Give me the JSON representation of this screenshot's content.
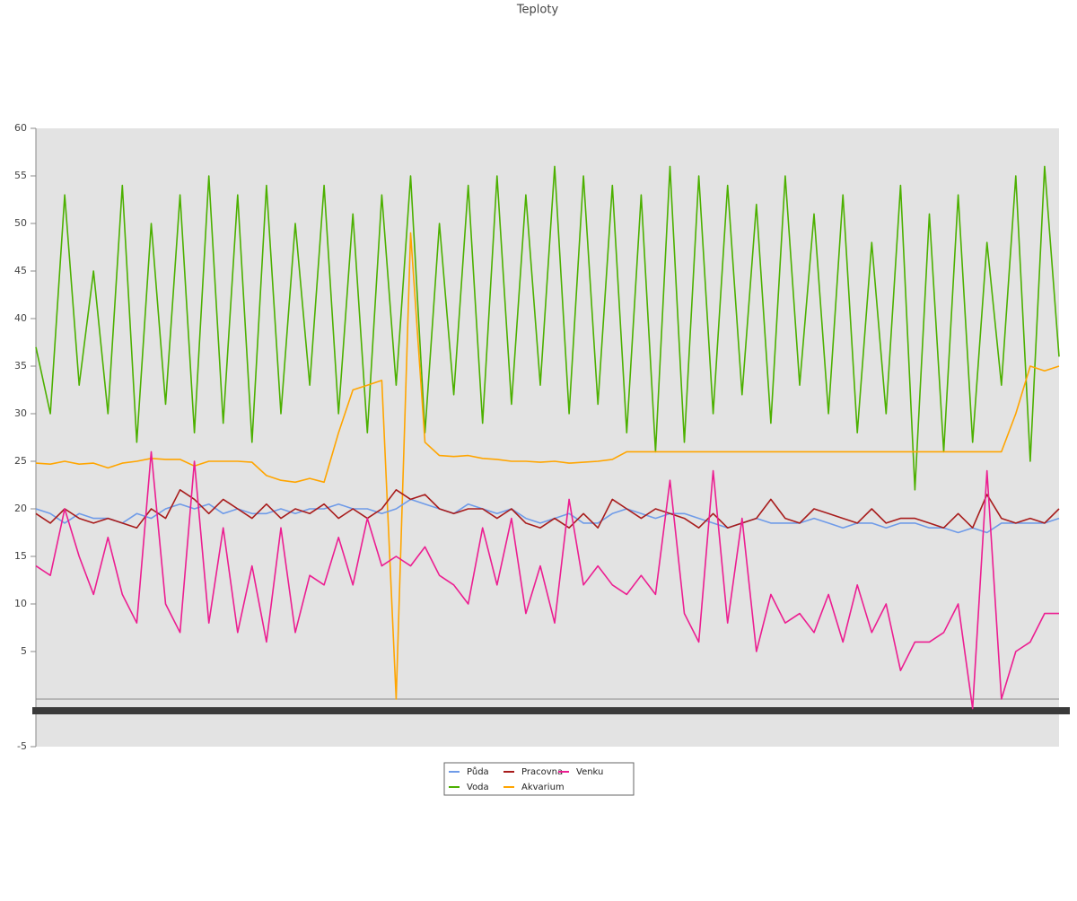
{
  "chart_data": {
    "type": "line",
    "title": "Teploty",
    "ylim": [
      -5,
      60
    ],
    "yticks": [
      -5,
      5,
      10,
      15,
      20,
      25,
      30,
      35,
      40,
      45,
      50,
      55,
      60
    ],
    "series": [
      {
        "name": "Půda",
        "color": "#6f9be8",
        "values": [
          20,
          19.5,
          18.5,
          19.5,
          19,
          19,
          18.5,
          19.5,
          19,
          20,
          20.5,
          20,
          20.5,
          19.5,
          20,
          19.5,
          19.5,
          20,
          19.5,
          20,
          20,
          20.5,
          20,
          20,
          19.5,
          20,
          21,
          20.5,
          20,
          19.5,
          20.5,
          20,
          19.5,
          20,
          19,
          18.5,
          19,
          19.5,
          18.5,
          18.5,
          19.5,
          20,
          19.5,
          19,
          19.5,
          19.5,
          19,
          18.5,
          18,
          18.5,
          19,
          18.5,
          18.5,
          18.5,
          19,
          18.5,
          18,
          18.5,
          18.5,
          18,
          18.5,
          18.5,
          18,
          18,
          17.5,
          18,
          17.5,
          18.5,
          18.5,
          18.5,
          18.5,
          19
        ]
      },
      {
        "name": "Pracovna",
        "color": "#a81c1c",
        "values": [
          19.5,
          18.5,
          20,
          19,
          18.5,
          19,
          18.5,
          18,
          20,
          19,
          22,
          21,
          19.5,
          21,
          20,
          19,
          20.5,
          19,
          20,
          19.5,
          20.5,
          19,
          20,
          19,
          20,
          22,
          21,
          21.5,
          20,
          19.5,
          20,
          20,
          19,
          20,
          18.5,
          18,
          19,
          18,
          19.5,
          18,
          21,
          20,
          19,
          20,
          19.5,
          19,
          18,
          19.5,
          18,
          18.5,
          19,
          21,
          19,
          18.5,
          20,
          19.5,
          19,
          18.5,
          20,
          18.5,
          19,
          19,
          18.5,
          18,
          19.5,
          18,
          21.5,
          19,
          18.5,
          19,
          18.5,
          20
        ]
      },
      {
        "name": "Venku",
        "color": "#ec1e91",
        "values": [
          14,
          13,
          20,
          15,
          11,
          17,
          11,
          8,
          26,
          10,
          7,
          25,
          8,
          18,
          7,
          14,
          6,
          18,
          7,
          13,
          12,
          17,
          12,
          19,
          14,
          15,
          14,
          16,
          13,
          12,
          10,
          18,
          12,
          19,
          9,
          14,
          8,
          21,
          12,
          14,
          12,
          11,
          13,
          11,
          23,
          9,
          6,
          24,
          8,
          19,
          5,
          11,
          8,
          9,
          7,
          11,
          6,
          12,
          7,
          10,
          3,
          6,
          6,
          7,
          10,
          -1,
          24,
          0,
          5,
          6,
          9,
          9
        ]
      },
      {
        "name": "Voda",
        "color": "#4cb000",
        "values": [
          37,
          30,
          53,
          33,
          45,
          30,
          54,
          27,
          50,
          31,
          53,
          28,
          55,
          29,
          53,
          27,
          54,
          30,
          50,
          33,
          54,
          30,
          51,
          28,
          53,
          33,
          55,
          28,
          50,
          32,
          54,
          29,
          55,
          31,
          53,
          33,
          56,
          30,
          55,
          31,
          54,
          28,
          53,
          26,
          56,
          27,
          55,
          30,
          54,
          32,
          52,
          29,
          55,
          33,
          51,
          30,
          53,
          28,
          48,
          30,
          54,
          22,
          51,
          26,
          53,
          27,
          48,
          33,
          55,
          25,
          56,
          36
        ]
      },
      {
        "name": "Akvarium",
        "color": "#ffa500",
        "values": [
          24.8,
          24.7,
          25,
          24.7,
          24.8,
          24.3,
          24.8,
          25,
          25.3,
          25.2,
          25.2,
          24.5,
          25,
          25,
          25,
          24.9,
          23.5,
          23,
          22.8,
          23.2,
          22.8,
          28,
          32.5,
          33,
          33.5,
          0,
          49,
          27,
          25.6,
          25.5,
          25.6,
          25.3,
          25.2,
          25,
          25,
          24.9,
          25,
          24.8,
          24.9,
          25,
          25.2,
          26,
          26,
          26,
          26,
          26,
          26,
          26,
          26,
          26,
          26,
          26,
          26,
          26,
          26,
          26,
          26,
          26,
          26,
          26,
          26,
          26,
          26,
          26,
          26,
          26,
          26,
          26,
          30,
          35,
          34.5,
          35
        ]
      }
    ]
  }
}
